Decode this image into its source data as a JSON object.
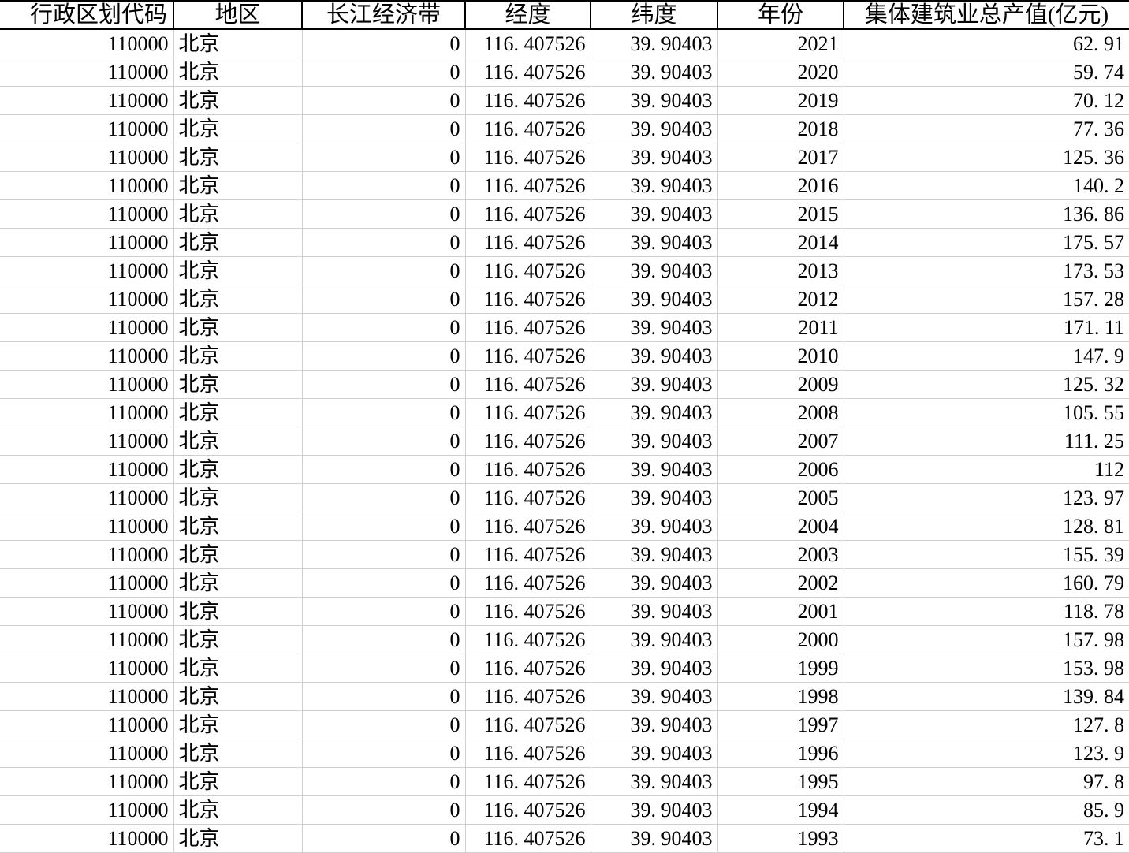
{
  "colors": {
    "background": "#ffffff",
    "text": "#000000",
    "header_border": "#000000",
    "grid_line": "#cfcfcf"
  },
  "table": {
    "columns": [
      {
        "id": "admin_code",
        "label": "行政区划代码"
      },
      {
        "id": "region",
        "label": "地区"
      },
      {
        "id": "yangtze_belt",
        "label": "长江经济带"
      },
      {
        "id": "longitude",
        "label": "经度"
      },
      {
        "id": "latitude",
        "label": "纬度"
      },
      {
        "id": "year",
        "label": "年份"
      },
      {
        "id": "output_value",
        "label": "集体建筑业总产值(亿元)"
      }
    ],
    "rows": [
      [
        "110000",
        "北京",
        "0",
        "116.407526",
        "39.90403",
        "2021",
        "62.91"
      ],
      [
        "110000",
        "北京",
        "0",
        "116.407526",
        "39.90403",
        "2020",
        "59.74"
      ],
      [
        "110000",
        "北京",
        "0",
        "116.407526",
        "39.90403",
        "2019",
        "70.12"
      ],
      [
        "110000",
        "北京",
        "0",
        "116.407526",
        "39.90403",
        "2018",
        "77.36"
      ],
      [
        "110000",
        "北京",
        "0",
        "116.407526",
        "39.90403",
        "2017",
        "125.36"
      ],
      [
        "110000",
        "北京",
        "0",
        "116.407526",
        "39.90403",
        "2016",
        "140.2"
      ],
      [
        "110000",
        "北京",
        "0",
        "116.407526",
        "39.90403",
        "2015",
        "136.86"
      ],
      [
        "110000",
        "北京",
        "0",
        "116.407526",
        "39.90403",
        "2014",
        "175.57"
      ],
      [
        "110000",
        "北京",
        "0",
        "116.407526",
        "39.90403",
        "2013",
        "173.53"
      ],
      [
        "110000",
        "北京",
        "0",
        "116.407526",
        "39.90403",
        "2012",
        "157.28"
      ],
      [
        "110000",
        "北京",
        "0",
        "116.407526",
        "39.90403",
        "2011",
        "171.11"
      ],
      [
        "110000",
        "北京",
        "0",
        "116.407526",
        "39.90403",
        "2010",
        "147.9"
      ],
      [
        "110000",
        "北京",
        "0",
        "116.407526",
        "39.90403",
        "2009",
        "125.32"
      ],
      [
        "110000",
        "北京",
        "0",
        "116.407526",
        "39.90403",
        "2008",
        "105.55"
      ],
      [
        "110000",
        "北京",
        "0",
        "116.407526",
        "39.90403",
        "2007",
        "111.25"
      ],
      [
        "110000",
        "北京",
        "0",
        "116.407526",
        "39.90403",
        "2006",
        "112"
      ],
      [
        "110000",
        "北京",
        "0",
        "116.407526",
        "39.90403",
        "2005",
        "123.97"
      ],
      [
        "110000",
        "北京",
        "0",
        "116.407526",
        "39.90403",
        "2004",
        "128.81"
      ],
      [
        "110000",
        "北京",
        "0",
        "116.407526",
        "39.90403",
        "2003",
        "155.39"
      ],
      [
        "110000",
        "北京",
        "0",
        "116.407526",
        "39.90403",
        "2002",
        "160.79"
      ],
      [
        "110000",
        "北京",
        "0",
        "116.407526",
        "39.90403",
        "2001",
        "118.78"
      ],
      [
        "110000",
        "北京",
        "0",
        "116.407526",
        "39.90403",
        "2000",
        "157.98"
      ],
      [
        "110000",
        "北京",
        "0",
        "116.407526",
        "39.90403",
        "1999",
        "153.98"
      ],
      [
        "110000",
        "北京",
        "0",
        "116.407526",
        "39.90403",
        "1998",
        "139.84"
      ],
      [
        "110000",
        "北京",
        "0",
        "116.407526",
        "39.90403",
        "1997",
        "127.8"
      ],
      [
        "110000",
        "北京",
        "0",
        "116.407526",
        "39.90403",
        "1996",
        "123.9"
      ],
      [
        "110000",
        "北京",
        "0",
        "116.407526",
        "39.90403",
        "1995",
        "97.8"
      ],
      [
        "110000",
        "北京",
        "0",
        "116.407526",
        "39.90403",
        "1994",
        "85.9"
      ],
      [
        "110000",
        "北京",
        "0",
        "116.407526",
        "39.90403",
        "1993",
        "73.1"
      ]
    ]
  }
}
